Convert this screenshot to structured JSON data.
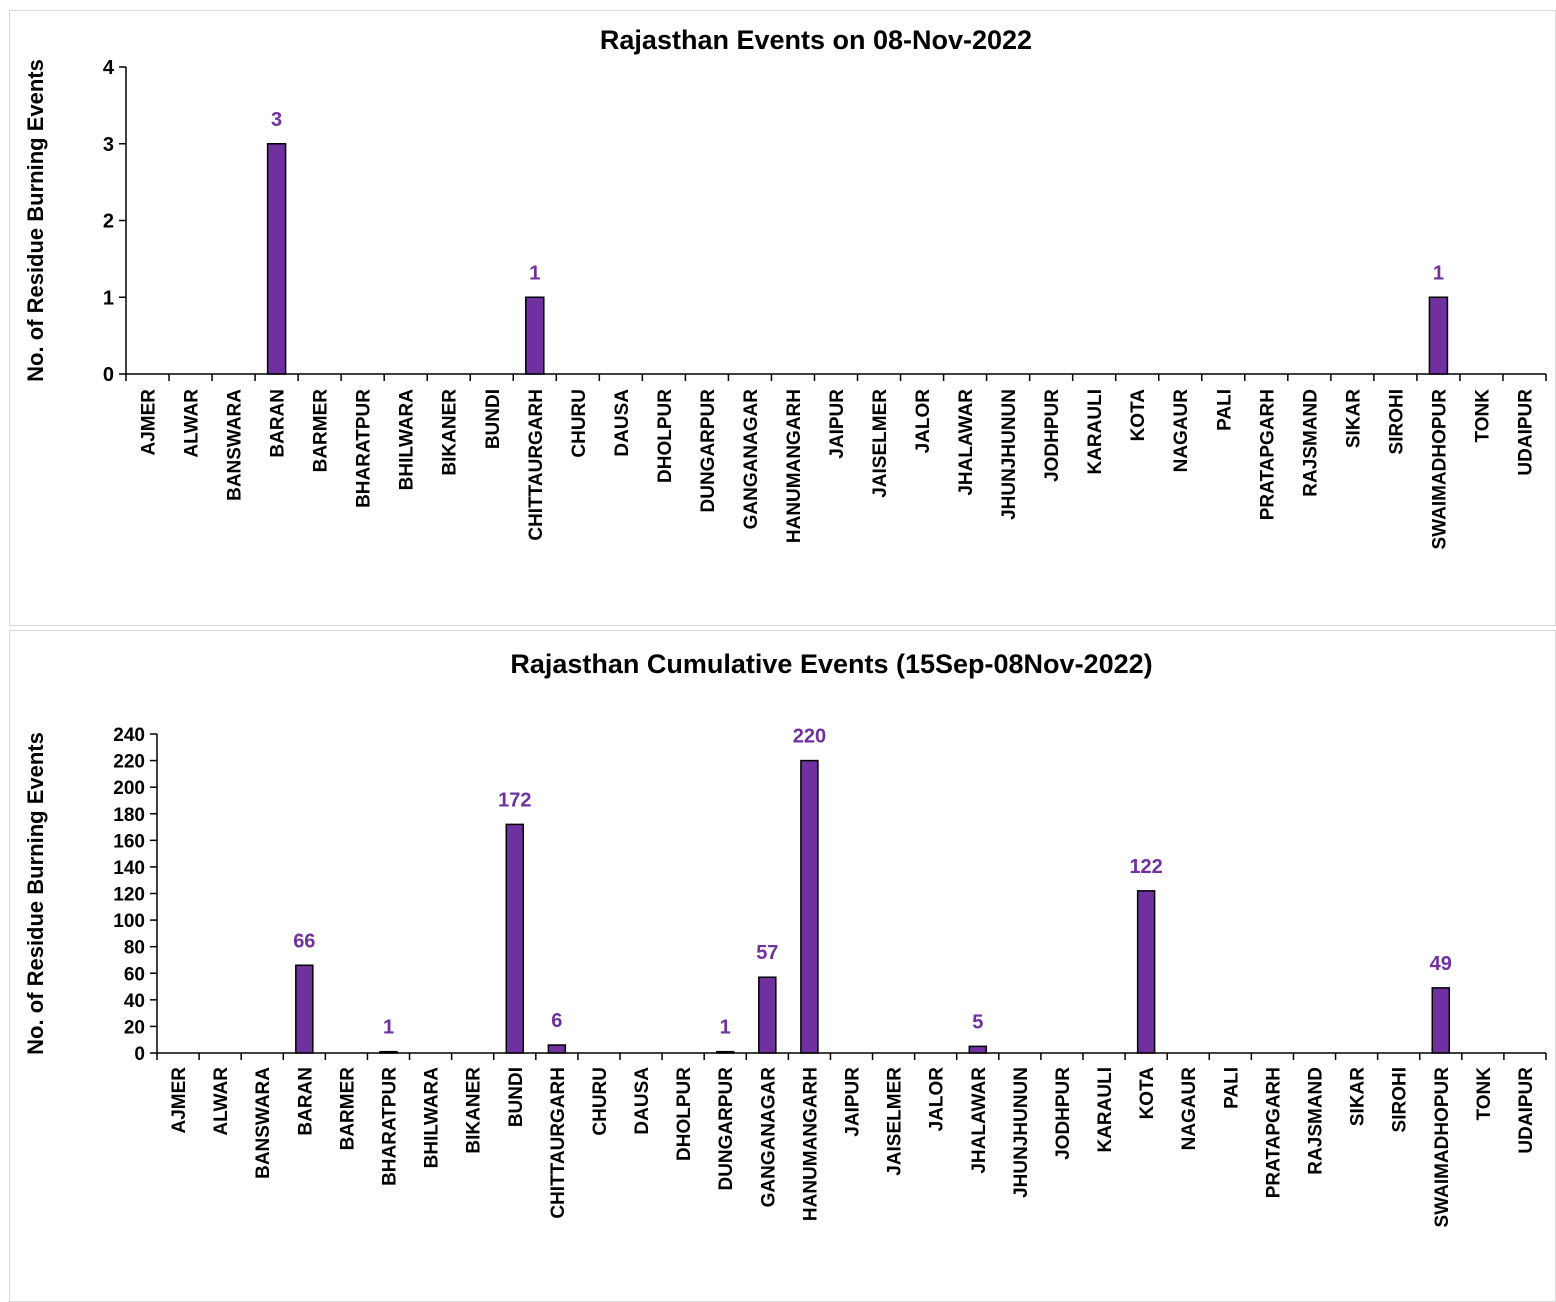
{
  "colors": {
    "bar": "#7030a0",
    "bar_stroke": "#000000",
    "label": "#7030a0",
    "axis": "#000000",
    "text": "#000000"
  },
  "chart_data": [
    {
      "type": "bar",
      "title": "Rajasthan Events on 08-Nov-2022",
      "xlabel": "",
      "ylabel": "No. of Residue Burning Events",
      "ylim": [
        0,
        4
      ],
      "yticks": [
        0,
        1,
        2,
        3,
        4
      ],
      "grid": false,
      "categories": [
        "AJMER",
        "ALWAR",
        "BANSWARA",
        "BARAN",
        "BARMER",
        "BHARATPUR",
        "BHILWARA",
        "BIKANER",
        "BUNDI",
        "CHITTAURGARH",
        "CHURU",
        "DAUSA",
        "DHOLPUR",
        "DUNGARPUR",
        "GANGANAGAR",
        "HANUMANGARH",
        "JAIPUR",
        "JAISELMER",
        "JALOR",
        "JHALAWAR",
        "JHUNJHUNUN",
        "JODHPUR",
        "KARAULI",
        "KOTA",
        "NAGAUR",
        "PALI",
        "PRATAPGARH",
        "RAJSMAND",
        "SIKAR",
        "SIROHI",
        "SWAIMADHOPUR",
        "TONK",
        "UDAIPUR"
      ],
      "values": [
        0,
        0,
        0,
        3,
        0,
        0,
        0,
        0,
        0,
        1,
        0,
        0,
        0,
        0,
        0,
        0,
        0,
        0,
        0,
        0,
        0,
        0,
        0,
        0,
        0,
        0,
        0,
        0,
        0,
        0,
        1,
        0,
        0
      ]
    },
    {
      "type": "bar",
      "title": "Rajasthan Cumulative Events (15Sep-08Nov-2022)",
      "xlabel": "",
      "ylabel": "No. of Residue Burning Events",
      "ylim": [
        0,
        240
      ],
      "yticks": [
        0,
        20,
        40,
        60,
        80,
        100,
        120,
        140,
        160,
        180,
        200,
        220,
        240
      ],
      "grid": false,
      "categories": [
        "AJMER",
        "ALWAR",
        "BANSWARA",
        "BARAN",
        "BARMER",
        "BHARATPUR",
        "BHILWARA",
        "BIKANER",
        "BUNDI",
        "CHITTAURGARH",
        "CHURU",
        "DAUSA",
        "DHOLPUR",
        "DUNGARPUR",
        "GANGANAGAR",
        "HANUMANGARH",
        "JAIPUR",
        "JAISELMER",
        "JALOR",
        "JHALAWAR",
        "JHUNJHUNUN",
        "JODHPUR",
        "KARAULI",
        "KOTA",
        "NAGAUR",
        "PALI",
        "PRATAPGARH",
        "RAJSMAND",
        "SIKAR",
        "SIROHI",
        "SWAIMADHOPUR",
        "TONK",
        "UDAIPUR"
      ],
      "values": [
        0,
        0,
        0,
        66,
        0,
        1,
        0,
        0,
        172,
        6,
        0,
        0,
        0,
        1,
        57,
        220,
        0,
        0,
        0,
        5,
        0,
        0,
        0,
        122,
        0,
        0,
        0,
        0,
        0,
        0,
        49,
        0,
        0
      ]
    }
  ]
}
